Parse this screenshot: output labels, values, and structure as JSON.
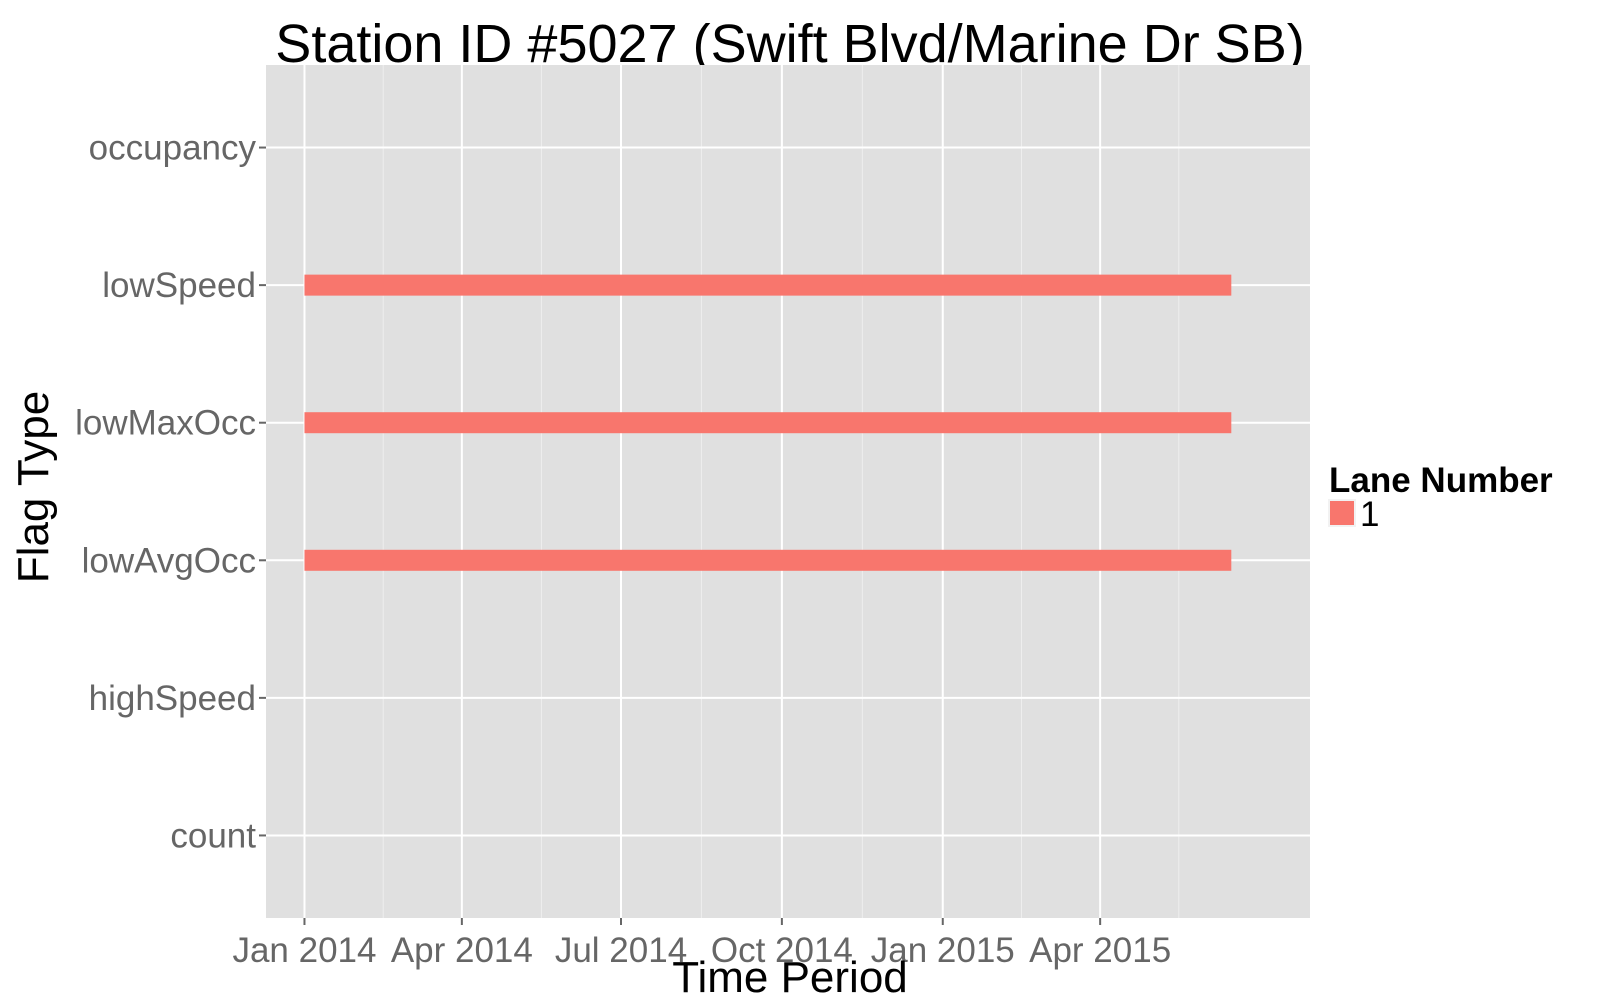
{
  "chart_data": {
    "type": "bar",
    "subtype": "horizontal-timeline-segments",
    "title": "Station ID #5027 (Swift Blvd/Marine Dr SB)",
    "xlabel": "Time Period",
    "ylabel": "Flag Type",
    "x_axis": {
      "type": "date",
      "range": [
        "2013-12-10",
        "2015-07-30"
      ],
      "ticks": [
        "2014-01-01",
        "2014-04-01",
        "2014-07-01",
        "2014-10-01",
        "2015-01-01",
        "2015-04-01"
      ],
      "tick_labels": [
        "Jan 2014",
        "Apr 2014",
        "Jul 2014",
        "Oct 2014",
        "Jan 2015",
        "Apr 2015"
      ]
    },
    "categories": [
      "count",
      "highSpeed",
      "lowAvgOcc",
      "lowMaxOcc",
      "lowSpeed",
      "occupancy"
    ],
    "series": [
      {
        "name": "1",
        "color": "#F8766D",
        "segments": [
          {
            "category": "lowSpeed",
            "start": "2014-01-01",
            "end": "2015-06-15"
          },
          {
            "category": "lowMaxOcc",
            "start": "2014-01-01",
            "end": "2015-06-15"
          },
          {
            "category": "lowAvgOcc",
            "start": "2014-01-01",
            "end": "2015-06-15"
          }
        ]
      }
    ],
    "legend": {
      "title": "Lane Number",
      "position": "right",
      "entries": [
        {
          "label": "1",
          "color": "#F8766D"
        }
      ]
    },
    "grid": true,
    "panel_background": "#E0E0E0"
  }
}
